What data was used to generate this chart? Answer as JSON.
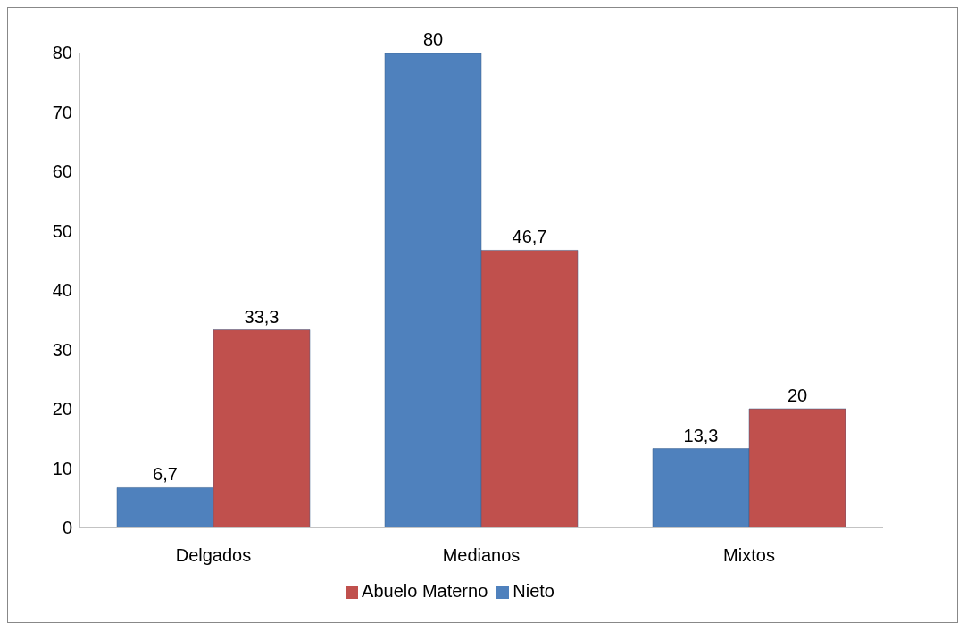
{
  "chart_data": {
    "type": "bar",
    "categories": [
      "Delgados",
      "Medianos",
      "Mixtos"
    ],
    "series": [
      {
        "name": "Nieto",
        "color": "#4f81bd",
        "values": [
          6.7,
          80,
          13.3
        ],
        "value_labels": [
          "6,7",
          "80",
          "13,3"
        ]
      },
      {
        "name": "Abuelo Materno",
        "color": "#c0504d",
        "values": [
          33.3,
          46.7,
          20
        ],
        "value_labels": [
          "33,3",
          "46,7",
          "20"
        ]
      }
    ],
    "ylim": [
      0,
      80
    ],
    "yticks": [
      0,
      10,
      20,
      30,
      40,
      50,
      60,
      70,
      80
    ],
    "grid": false,
    "legend": "bottom"
  }
}
